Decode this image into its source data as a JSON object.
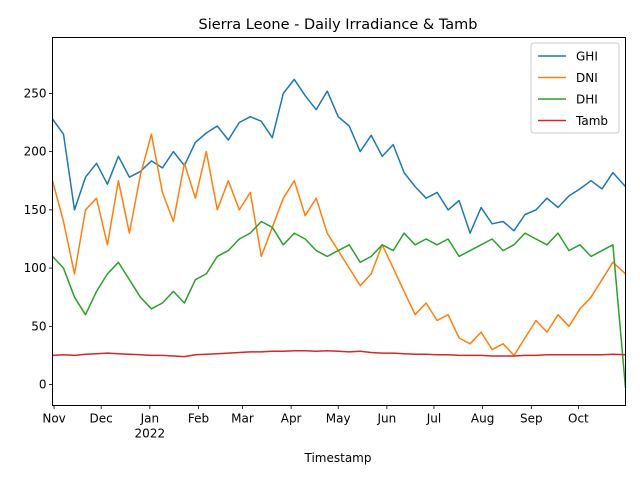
{
  "chart_data": {
    "type": "line",
    "title": "Sierra Leone - Daily Irradiance & Tamb",
    "xlabel": "Timestamp",
    "ylabel": "",
    "ylim": [
      -18,
      298
    ],
    "yticks": [
      0,
      50,
      100,
      150,
      200,
      250
    ],
    "x_range": [
      "2021-10-31",
      "2022-10-31"
    ],
    "xticks": [
      {
        "date": "2021-11-01",
        "label": "Nov",
        "sublabel": ""
      },
      {
        "date": "2021-12-01",
        "label": "Dec",
        "sublabel": ""
      },
      {
        "date": "2022-01-01",
        "label": "Jan",
        "sublabel": "2022"
      },
      {
        "date": "2022-02-01",
        "label": "Feb",
        "sublabel": ""
      },
      {
        "date": "2022-03-01",
        "label": "Mar",
        "sublabel": ""
      },
      {
        "date": "2022-04-01",
        "label": "Apr",
        "sublabel": ""
      },
      {
        "date": "2022-05-01",
        "label": "May",
        "sublabel": ""
      },
      {
        "date": "2022-06-01",
        "label": "Jun",
        "sublabel": ""
      },
      {
        "date": "2022-07-01",
        "label": "Jul",
        "sublabel": ""
      },
      {
        "date": "2022-08-01",
        "label": "Aug",
        "sublabel": ""
      },
      {
        "date": "2022-09-01",
        "label": "Sep",
        "sublabel": ""
      },
      {
        "date": "2022-10-01",
        "label": "Oct",
        "sublabel": ""
      }
    ],
    "legend_position": "top-right",
    "grid": false,
    "series": [
      {
        "name": "GHI",
        "color": "#1f77b4",
        "x": [
          "2021-10-31",
          "2021-11-07",
          "2021-11-14",
          "2021-11-21",
          "2021-11-28",
          "2021-12-05",
          "2021-12-12",
          "2021-12-19",
          "2021-12-26",
          "2022-01-02",
          "2022-01-09",
          "2022-01-16",
          "2022-01-23",
          "2022-01-30",
          "2022-02-06",
          "2022-02-13",
          "2022-02-20",
          "2022-02-27",
          "2022-03-06",
          "2022-03-13",
          "2022-03-20",
          "2022-03-27",
          "2022-04-03",
          "2022-04-10",
          "2022-04-17",
          "2022-04-24",
          "2022-05-01",
          "2022-05-08",
          "2022-05-15",
          "2022-05-22",
          "2022-05-29",
          "2022-06-05",
          "2022-06-12",
          "2022-06-19",
          "2022-06-26",
          "2022-07-03",
          "2022-07-10",
          "2022-07-17",
          "2022-07-24",
          "2022-07-31",
          "2022-08-07",
          "2022-08-14",
          "2022-08-21",
          "2022-08-28",
          "2022-09-04",
          "2022-09-11",
          "2022-09-18",
          "2022-09-25",
          "2022-10-02",
          "2022-10-09",
          "2022-10-16",
          "2022-10-23",
          "2022-10-31"
        ],
        "values": [
          228,
          215,
          150,
          178,
          190,
          172,
          196,
          178,
          183,
          192,
          186,
          200,
          188,
          208,
          216,
          222,
          210,
          225,
          230,
          226,
          212,
          250,
          262,
          248,
          236,
          252,
          230,
          222,
          200,
          214,
          196,
          206,
          182,
          170,
          160,
          165,
          150,
          158,
          130,
          152,
          138,
          140,
          132,
          146,
          150,
          160,
          152,
          162,
          168,
          175,
          168,
          182,
          170
        ]
      },
      {
        "name": "DNI",
        "color": "#ff7f0e",
        "x": [
          "2021-10-31",
          "2021-11-07",
          "2021-11-14",
          "2021-11-21",
          "2021-11-28",
          "2021-12-05",
          "2021-12-12",
          "2021-12-19",
          "2021-12-26",
          "2022-01-02",
          "2022-01-09",
          "2022-01-16",
          "2022-01-23",
          "2022-01-30",
          "2022-02-06",
          "2022-02-13",
          "2022-02-20",
          "2022-02-27",
          "2022-03-06",
          "2022-03-13",
          "2022-03-20",
          "2022-03-27",
          "2022-04-03",
          "2022-04-10",
          "2022-04-17",
          "2022-04-24",
          "2022-05-01",
          "2022-05-08",
          "2022-05-15",
          "2022-05-22",
          "2022-05-29",
          "2022-06-05",
          "2022-06-12",
          "2022-06-19",
          "2022-06-26",
          "2022-07-03",
          "2022-07-10",
          "2022-07-17",
          "2022-07-24",
          "2022-07-31",
          "2022-08-07",
          "2022-08-14",
          "2022-08-21",
          "2022-08-28",
          "2022-09-04",
          "2022-09-11",
          "2022-09-18",
          "2022-09-25",
          "2022-10-02",
          "2022-10-09",
          "2022-10-16",
          "2022-10-23",
          "2022-10-31"
        ],
        "values": [
          175,
          140,
          95,
          150,
          160,
          120,
          175,
          130,
          180,
          215,
          165,
          140,
          190,
          160,
          200,
          150,
          175,
          150,
          165,
          110,
          135,
          160,
          175,
          145,
          160,
          130,
          115,
          100,
          85,
          95,
          120,
          100,
          80,
          60,
          70,
          55,
          60,
          40,
          35,
          45,
          30,
          35,
          25,
          40,
          55,
          45,
          60,
          50,
          65,
          75,
          90,
          105,
          95
        ]
      },
      {
        "name": "DHI",
        "color": "#2ca02c",
        "x": [
          "2021-10-31",
          "2021-11-07",
          "2021-11-14",
          "2021-11-21",
          "2021-11-28",
          "2021-12-05",
          "2021-12-12",
          "2021-12-19",
          "2021-12-26",
          "2022-01-02",
          "2022-01-09",
          "2022-01-16",
          "2022-01-23",
          "2022-01-30",
          "2022-02-06",
          "2022-02-13",
          "2022-02-20",
          "2022-02-27",
          "2022-03-06",
          "2022-03-13",
          "2022-03-20",
          "2022-03-27",
          "2022-04-03",
          "2022-04-10",
          "2022-04-17",
          "2022-04-24",
          "2022-05-01",
          "2022-05-08",
          "2022-05-15",
          "2022-05-22",
          "2022-05-29",
          "2022-06-05",
          "2022-06-12",
          "2022-06-19",
          "2022-06-26",
          "2022-07-03",
          "2022-07-10",
          "2022-07-17",
          "2022-07-24",
          "2022-07-31",
          "2022-08-07",
          "2022-08-14",
          "2022-08-21",
          "2022-08-28",
          "2022-09-04",
          "2022-09-11",
          "2022-09-18",
          "2022-09-25",
          "2022-10-02",
          "2022-10-09",
          "2022-10-16",
          "2022-10-23",
          "2022-10-31"
        ],
        "values": [
          110,
          100,
          75,
          60,
          80,
          95,
          105,
          90,
          75,
          65,
          70,
          80,
          70,
          90,
          95,
          110,
          115,
          125,
          130,
          140,
          135,
          120,
          130,
          125,
          115,
          110,
          115,
          120,
          105,
          110,
          120,
          115,
          130,
          120,
          125,
          120,
          125,
          110,
          115,
          120,
          125,
          115,
          120,
          130,
          125,
          120,
          130,
          115,
          120,
          110,
          115,
          120,
          -3
        ]
      },
      {
        "name": "Tamb",
        "color": "#d62728",
        "x": [
          "2021-10-31",
          "2021-11-07",
          "2021-11-14",
          "2021-11-21",
          "2021-11-28",
          "2021-12-05",
          "2021-12-12",
          "2021-12-19",
          "2021-12-26",
          "2022-01-02",
          "2022-01-09",
          "2022-01-16",
          "2022-01-23",
          "2022-01-30",
          "2022-02-06",
          "2022-02-13",
          "2022-02-20",
          "2022-02-27",
          "2022-03-06",
          "2022-03-13",
          "2022-03-20",
          "2022-03-27",
          "2022-04-03",
          "2022-04-10",
          "2022-04-17",
          "2022-04-24",
          "2022-05-01",
          "2022-05-08",
          "2022-05-15",
          "2022-05-22",
          "2022-05-29",
          "2022-06-05",
          "2022-06-12",
          "2022-06-19",
          "2022-06-26",
          "2022-07-03",
          "2022-07-10",
          "2022-07-17",
          "2022-07-24",
          "2022-07-31",
          "2022-08-07",
          "2022-08-14",
          "2022-08-21",
          "2022-08-28",
          "2022-09-04",
          "2022-09-11",
          "2022-09-18",
          "2022-09-25",
          "2022-10-02",
          "2022-10-09",
          "2022-10-16",
          "2022-10-23",
          "2022-10-31"
        ],
        "values": [
          25,
          25.5,
          25,
          26,
          26.5,
          27,
          26.5,
          26,
          25.5,
          25,
          25,
          24.5,
          24,
          25.5,
          26,
          26.5,
          27,
          27.5,
          28,
          28,
          28.5,
          28.5,
          29,
          29,
          28.5,
          29,
          28.5,
          28,
          28.5,
          27.5,
          27,
          27,
          26.5,
          26,
          26,
          25.5,
          25.5,
          25,
          25,
          25,
          24.5,
          24.5,
          24.5,
          25,
          25,
          25.5,
          25.5,
          25.5,
          25.5,
          25.5,
          25.5,
          26,
          25.5
        ]
      }
    ]
  }
}
